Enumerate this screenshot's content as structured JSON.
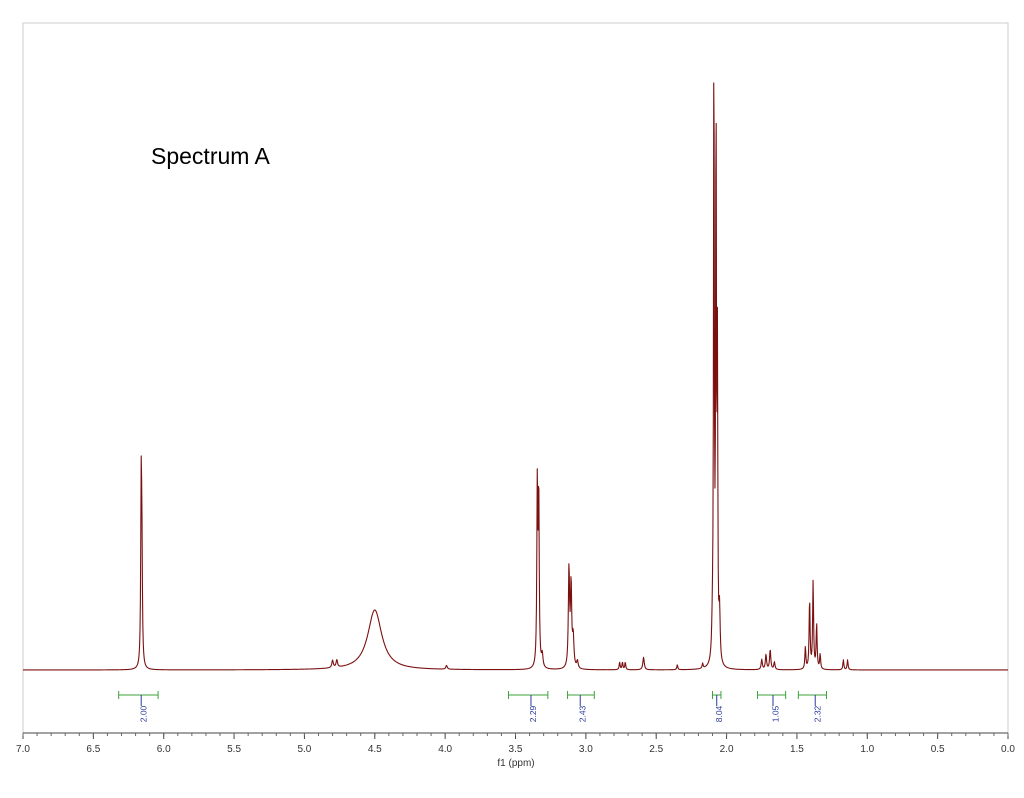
{
  "chart_data": {
    "type": "line",
    "title": "Spectrum A",
    "xlabel": "f1 (ppm)",
    "ylabel": "",
    "xlim": [
      7.0,
      0.0
    ],
    "ylim": [
      -0.2,
      2.6
    ],
    "x_reversed": true,
    "x_ticks": [
      "7.0",
      "6.5",
      "6.0",
      "5.5",
      "5.0",
      "4.5",
      "4.0",
      "3.5",
      "3.0",
      "2.5",
      "2.0",
      "1.5",
      "1.0",
      "0.5",
      "0.0"
    ],
    "grid": false,
    "legend": "none",
    "colors": {
      "spectrum": "#7a1010",
      "integral_bracket": "#3aa33a",
      "integral_text": "#2a3a9c",
      "frame": "#cccccc"
    },
    "peaks": [
      {
        "ppm": 6.16,
        "height": 0.7,
        "width": 0.004
      },
      {
        "ppm": 6.155,
        "height": 0.4,
        "width": 0.004
      },
      {
        "ppm": 4.8,
        "height": 0.03,
        "width": 0.006
      },
      {
        "ppm": 4.77,
        "height": 0.03,
        "width": 0.006
      },
      {
        "ppm": 4.5,
        "height": 0.24,
        "width": 0.06
      },
      {
        "ppm": 3.99,
        "height": 0.015,
        "width": 0.006
      },
      {
        "ppm": 3.345,
        "height": 0.72,
        "width": 0.004
      },
      {
        "ppm": 3.335,
        "height": 0.7,
        "width": 0.004
      },
      {
        "ppm": 3.31,
        "height": 0.05,
        "width": 0.006
      },
      {
        "ppm": 3.12,
        "height": 0.4,
        "width": 0.005
      },
      {
        "ppm": 3.105,
        "height": 0.33,
        "width": 0.005
      },
      {
        "ppm": 3.09,
        "height": 0.12,
        "width": 0.006
      },
      {
        "ppm": 3.06,
        "height": 0.03,
        "width": 0.006
      },
      {
        "ppm": 2.76,
        "height": 0.03,
        "width": 0.004
      },
      {
        "ppm": 2.74,
        "height": 0.03,
        "width": 0.004
      },
      {
        "ppm": 2.72,
        "height": 0.03,
        "width": 0.004
      },
      {
        "ppm": 2.59,
        "height": 0.05,
        "width": 0.006
      },
      {
        "ppm": 2.35,
        "height": 0.02,
        "width": 0.004
      },
      {
        "ppm": 2.17,
        "height": 0.02,
        "width": 0.004
      },
      {
        "ppm": 2.1,
        "height": 0.12,
        "width": 0.006
      },
      {
        "ppm": 2.09,
        "height": 2.6,
        "width": 0.003
      },
      {
        "ppm": 2.075,
        "height": 2.3,
        "width": 0.003
      },
      {
        "ppm": 2.065,
        "height": 1.2,
        "width": 0.003
      },
      {
        "ppm": 2.05,
        "height": 0.2,
        "width": 0.005
      },
      {
        "ppm": 1.75,
        "height": 0.04,
        "width": 0.005
      },
      {
        "ppm": 1.72,
        "height": 0.06,
        "width": 0.005
      },
      {
        "ppm": 1.69,
        "height": 0.08,
        "width": 0.005
      },
      {
        "ppm": 1.66,
        "height": 0.03,
        "width": 0.005
      },
      {
        "ppm": 1.44,
        "height": 0.09,
        "width": 0.004
      },
      {
        "ppm": 1.41,
        "height": 0.28,
        "width": 0.004
      },
      {
        "ppm": 1.385,
        "height": 0.35,
        "width": 0.004
      },
      {
        "ppm": 1.36,
        "height": 0.18,
        "width": 0.004
      },
      {
        "ppm": 1.335,
        "height": 0.06,
        "width": 0.004
      },
      {
        "ppm": 1.17,
        "height": 0.04,
        "width": 0.004
      },
      {
        "ppm": 1.14,
        "height": 0.04,
        "width": 0.004
      }
    ],
    "integrals": [
      {
        "from": 6.32,
        "to": 6.04,
        "center": 6.16,
        "label": "2.00"
      },
      {
        "from": 3.55,
        "to": 3.27,
        "center": 3.39,
        "label": "2.29"
      },
      {
        "from": 3.13,
        "to": 2.94,
        "center": 3.04,
        "label": "2.43"
      },
      {
        "from": 2.1,
        "to": 2.04,
        "center": 2.07,
        "label": "8.04"
      },
      {
        "from": 1.78,
        "to": 1.58,
        "center": 1.67,
        "label": "1.05"
      },
      {
        "from": 1.49,
        "to": 1.29,
        "center": 1.37,
        "label": "2.32"
      }
    ]
  }
}
